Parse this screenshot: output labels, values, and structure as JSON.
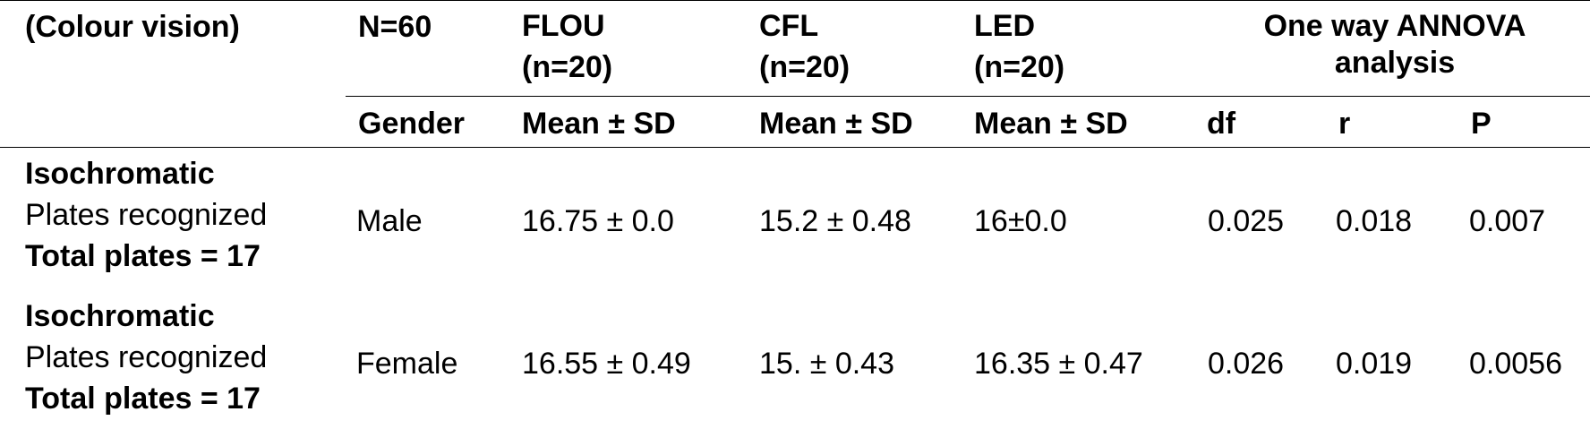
{
  "header": {
    "row1": {
      "category": "(Colour vision)",
      "n": "N=60",
      "flou": {
        "line1": "FLOU",
        "line2": "(n=20)"
      },
      "cfl": {
        "line1": "CFL",
        "line2": "(n=20)"
      },
      "led": {
        "line1": "LED",
        "line2": "(n=20)"
      },
      "anova": {
        "line1": "One way ANNOVA",
        "line2": "analysis"
      }
    },
    "row2": {
      "gender": "Gender",
      "flou": "Mean ± SD",
      "cfl": "Mean ± SD",
      "led": "Mean ± SD",
      "df": "df",
      "r": "r",
      "p": "P"
    }
  },
  "rows": [
    {
      "label1": "Isochromatic",
      "label2": "Plates recognized",
      "label3": "Total plates = 17",
      "gender": "Male",
      "flou": "16.75 ± 0.0",
      "cfl": "15.2 ± 0.48",
      "led": "16±0.0",
      "df": "0.025",
      "r": "0.018",
      "p": "0.007"
    },
    {
      "label1": "Isochromatic",
      "label2": "Plates recognized",
      "label3": "Total plates = 17",
      "gender": "Female",
      "flou": "16.55 ± 0.49",
      "cfl": "15. ± 0.43",
      "led": "16.35 ± 0.47",
      "df": "0.026",
      "r": "0.019",
      "p": "0.0056"
    }
  ]
}
